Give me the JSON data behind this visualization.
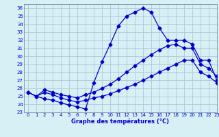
{
  "title": "Graphe des températures (°C)",
  "xlim": [
    -0.5,
    23
  ],
  "ylim": [
    23,
    36.5
  ],
  "yticks": [
    23,
    24,
    25,
    26,
    27,
    28,
    29,
    30,
    31,
    32,
    33,
    34,
    35,
    36
  ],
  "xticks": [
    0,
    1,
    2,
    3,
    4,
    5,
    6,
    7,
    8,
    9,
    10,
    11,
    12,
    13,
    14,
    15,
    16,
    17,
    18,
    19,
    20,
    21,
    22,
    23
  ],
  "line1_x": [
    0,
    1,
    2,
    3,
    4,
    5,
    6,
    7,
    8,
    9,
    10,
    11,
    12,
    13,
    14,
    15,
    16,
    17,
    18,
    19,
    20,
    21,
    22,
    23
  ],
  "line1_y": [
    25.5,
    25.0,
    24.7,
    24.5,
    24.2,
    23.9,
    23.7,
    23.4,
    26.7,
    29.3,
    31.5,
    33.8,
    35.0,
    35.5,
    36.0,
    35.5,
    33.5,
    32.0,
    32.0,
    32.0,
    31.5,
    29.5,
    29.5,
    27.0
  ],
  "line2_x": [
    0,
    1,
    2,
    3,
    4,
    5,
    6,
    7,
    8,
    9,
    10,
    11,
    12,
    13,
    14,
    15,
    16,
    17,
    18,
    19,
    20,
    21,
    22,
    23
  ],
  "line2_y": [
    25.5,
    25.0,
    25.8,
    25.5,
    25.2,
    25.0,
    24.8,
    25.2,
    25.5,
    26.0,
    26.5,
    27.2,
    28.0,
    28.8,
    29.5,
    30.2,
    30.8,
    31.3,
    31.5,
    31.0,
    31.0,
    29.0,
    28.5,
    27.5
  ],
  "line3_x": [
    0,
    1,
    2,
    3,
    4,
    5,
    6,
    7,
    8,
    9,
    10,
    11,
    12,
    13,
    14,
    15,
    16,
    17,
    18,
    19,
    20,
    21,
    22,
    23
  ],
  "line3_y": [
    25.5,
    25.0,
    25.5,
    25.2,
    24.8,
    24.5,
    24.3,
    24.5,
    24.8,
    25.0,
    25.3,
    25.7,
    26.1,
    26.5,
    27.0,
    27.5,
    28.0,
    28.5,
    29.0,
    29.5,
    29.5,
    28.0,
    27.5,
    26.7
  ],
  "line_color": "#0000cd",
  "bg_color": "#d6f0f5",
  "grid_color": "#b0c8d8"
}
